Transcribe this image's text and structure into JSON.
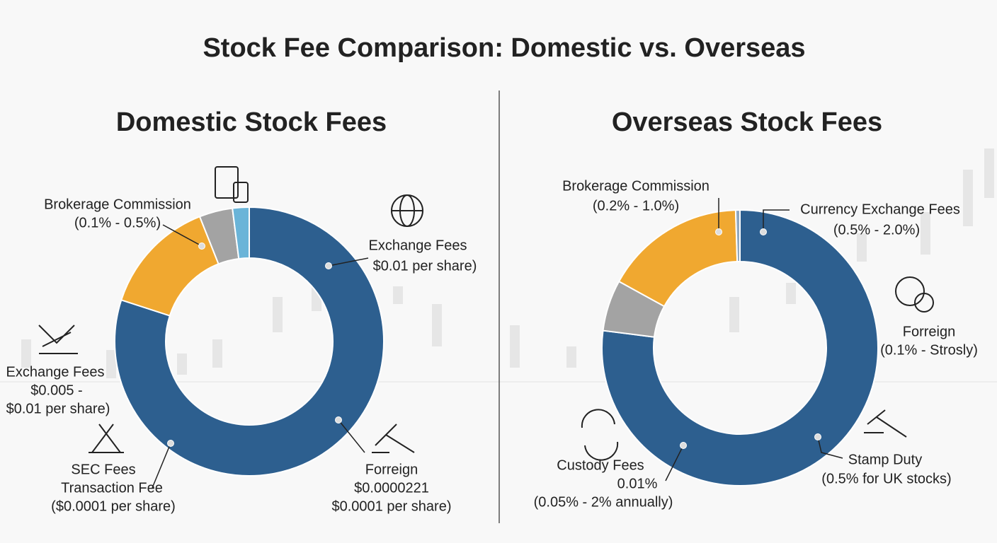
{
  "title": "Stock Fee Comparison: Domestic vs. Overseas",
  "chart_data": [
    {
      "type": "donut",
      "title": "Domestic Stock Fees",
      "categories": [
        null,
        null,
        null,
        null
      ],
      "values": [
        80,
        14,
        4,
        2
      ],
      "colors": [
        "#2d5f8f",
        "#f0a830",
        "#a3a3a3",
        "#6ab4d8"
      ],
      "annotations": [
        [
          "Brokerage Commission",
          "(0.1% - 0.5%)"
        ],
        [
          "Exchange Fees",
          "$0.01 per share)"
        ],
        [
          "Exchange Fees",
          "$0.005 -",
          "$0.01 per share)"
        ],
        [
          "SEC Fees",
          "Transaction Fee",
          "($0.0001 per share)"
        ],
        [
          "Forreign",
          "$0.0000221",
          "$0.0001 per share)"
        ]
      ]
    },
    {
      "type": "donut",
      "title": "Overseas Stock Fees",
      "categories": [
        null,
        null,
        null,
        null
      ],
      "values": [
        77,
        6,
        16.5,
        0.5
      ],
      "colors": [
        "#2d5f8f",
        "#a3a3a3",
        "#f0a830",
        "#8fa8c0"
      ],
      "annotations": [
        [
          "Brokerage Commission",
          "(0.2% - 1.0%)"
        ],
        [
          "Currency Exchange Fees",
          "(0.5% - 2.0%)"
        ],
        [
          "Forreign",
          "(0.1% - Strosly)"
        ],
        [
          "Stamp Duty",
          "(0.5% for UK stocks)"
        ],
        [
          "Custody Fees",
          "0.01%",
          "(0.05% - 2% annually)"
        ]
      ]
    }
  ]
}
